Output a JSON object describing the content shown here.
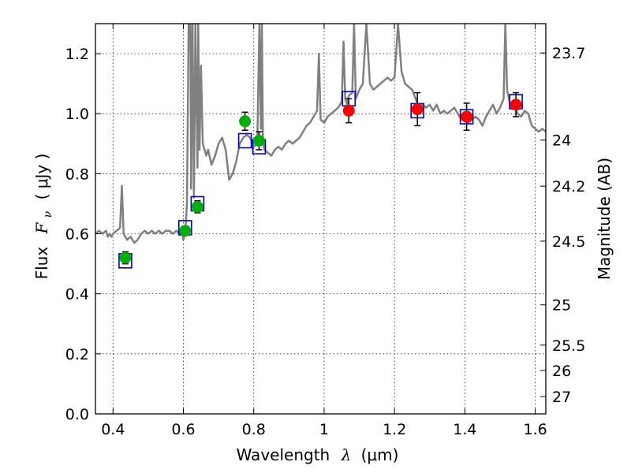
{
  "chart_data": {
    "type": "scatter",
    "xlabel": {
      "text": "Wavelength",
      "symbol": "λ",
      "unit": "(μm)"
    },
    "ylabel": {
      "text": "Flux",
      "symbol": "F",
      "subscript": "ν",
      "unit": "( μJy )"
    },
    "y2label": "Magnitude (AB)",
    "xlim": [
      0.35,
      1.63
    ],
    "ylim": [
      0.0,
      1.3
    ],
    "grid": true,
    "x_ticks": [
      "0.4",
      "0.6",
      "0.8",
      "1",
      "1.2",
      "1.4",
      "1.6"
    ],
    "x_tick_values": [
      0.4,
      0.6,
      0.8,
      1.0,
      1.2,
      1.4,
      1.6
    ],
    "y_ticks": [
      "0.0",
      "0.2",
      "0.4",
      "0.6",
      "0.8",
      "1.0",
      "1.2"
    ],
    "y_tick_values": [
      0.0,
      0.2,
      0.4,
      0.6,
      0.8,
      1.0,
      1.2
    ],
    "y2_ticks": [
      {
        "label": "23.7",
        "value": 23.7
      },
      {
        "label": "24",
        "value": 24.0
      },
      {
        "label": "24.2",
        "value": 24.2
      },
      {
        "label": "24.5",
        "value": 24.5
      },
      {
        "label": "25",
        "value": 25.0
      },
      {
        "label": "25.5",
        "value": 25.5
      },
      {
        "label": "26",
        "value": 26.0
      },
      {
        "label": "27",
        "value": 27.0
      }
    ],
    "series": [
      {
        "marker": "line",
        "color": "#808080",
        "x": [
          0.35,
          0.36,
          0.37,
          0.38,
          0.385,
          0.39,
          0.395,
          0.4,
          0.41,
          0.42,
          0.425,
          0.43,
          0.44,
          0.45,
          0.46,
          0.47,
          0.48,
          0.49,
          0.5,
          0.51,
          0.52,
          0.53,
          0.54,
          0.55,
          0.56,
          0.57,
          0.58,
          0.59,
          0.595,
          0.6,
          0.605,
          0.61,
          0.615,
          0.62,
          0.622,
          0.626,
          0.63,
          0.634,
          0.64,
          0.642,
          0.646,
          0.65,
          0.655,
          0.66,
          0.665,
          0.67,
          0.68,
          0.69,
          0.7,
          0.71,
          0.72,
          0.73,
          0.74,
          0.75,
          0.76,
          0.77,
          0.78,
          0.79,
          0.8,
          0.81,
          0.816,
          0.82,
          0.823,
          0.826,
          0.83,
          0.84,
          0.85,
          0.86,
          0.87,
          0.88,
          0.89,
          0.9,
          0.91,
          0.92,
          0.93,
          0.94,
          0.95,
          0.96,
          0.97,
          0.98,
          0.985,
          0.99,
          1.0,
          1.01,
          1.02,
          1.03,
          1.04,
          1.05,
          1.055,
          1.06,
          1.065,
          1.07,
          1.08,
          1.085,
          1.09,
          1.1,
          1.11,
          1.12,
          1.13,
          1.14,
          1.15,
          1.16,
          1.17,
          1.18,
          1.19,
          1.2,
          1.21,
          1.22,
          1.23,
          1.24,
          1.25,
          1.26,
          1.27,
          1.28,
          1.29,
          1.3,
          1.31,
          1.32,
          1.33,
          1.34,
          1.35,
          1.36,
          1.37,
          1.38,
          1.39,
          1.4,
          1.41,
          1.42,
          1.43,
          1.44,
          1.45,
          1.46,
          1.47,
          1.48,
          1.49,
          1.5,
          1.51,
          1.515,
          1.52,
          1.53,
          1.54,
          1.55,
          1.56,
          1.57,
          1.58,
          1.59,
          1.6,
          1.61,
          1.62,
          1.63
        ],
        "y": [
          0.6,
          0.61,
          0.6,
          0.61,
          0.59,
          0.6,
          0.59,
          0.6,
          0.61,
          0.62,
          0.76,
          0.6,
          0.58,
          0.59,
          0.57,
          0.58,
          0.6,
          0.61,
          0.6,
          0.61,
          0.6,
          0.61,
          0.6,
          0.61,
          0.61,
          0.6,
          0.61,
          0.6,
          0.62,
          0.58,
          0.6,
          0.7,
          1.3,
          1.3,
          0.75,
          1.3,
          0.72,
          1.3,
          0.82,
          1.3,
          0.88,
          1.16,
          0.9,
          0.88,
          0.86,
          0.88,
          0.83,
          0.86,
          0.9,
          0.92,
          0.88,
          0.78,
          0.8,
          0.84,
          0.9,
          0.92,
          0.93,
          0.92,
          0.89,
          0.9,
          1.3,
          0.95,
          1.3,
          0.92,
          0.88,
          0.87,
          0.86,
          0.88,
          0.89,
          0.88,
          0.9,
          0.91,
          0.9,
          0.91,
          0.92,
          0.94,
          0.96,
          0.97,
          0.99,
          1.01,
          1.2,
          0.98,
          0.97,
          0.99,
          1.0,
          1.01,
          1.02,
          1.04,
          1.24,
          1.05,
          1.03,
          1.06,
          1.07,
          1.3,
          1.05,
          1.08,
          1.1,
          1.3,
          1.1,
          1.08,
          1.09,
          1.1,
          1.11,
          1.12,
          1.11,
          1.12,
          1.3,
          1.14,
          1.1,
          1.09,
          1.08,
          1.05,
          1.02,
          1.03,
          1.02,
          1.03,
          1.01,
          1.03,
          1.0,
          1.01,
          1.0,
          1.01,
          1.02,
          1.0,
          0.98,
          1.0,
          0.97,
          0.98,
          0.99,
          0.98,
          0.96,
          0.99,
          1.01,
          1.03,
          1.0,
          1.02,
          1.05,
          1.3,
          1.08,
          1.02,
          1.03,
          1.0,
          0.99,
          1.01,
          1.0,
          0.96,
          0.95,
          0.94,
          0.95,
          0.94
        ]
      },
      {
        "marker": "open-square",
        "color": "#0000cc",
        "x": [
          0.435,
          0.605,
          0.64,
          0.775,
          0.815,
          1.07,
          1.265,
          1.405,
          1.545
        ],
        "y": [
          0.51,
          0.62,
          0.7,
          0.91,
          0.89,
          1.05,
          1.01,
          0.99,
          1.04
        ]
      },
      {
        "marker": "filled-circle",
        "color": "#00b000",
        "x": [
          0.435,
          0.605,
          0.64,
          0.775,
          0.815
        ],
        "y": [
          0.52,
          0.61,
          0.69,
          0.975,
          0.91
        ],
        "err": [
          0.02,
          0.015,
          0.02,
          0.03,
          0.03
        ]
      },
      {
        "marker": "filled-circle",
        "color": "#ff0000",
        "x": [
          1.07,
          1.265,
          1.405,
          1.545
        ],
        "y": [
          1.01,
          1.015,
          0.99,
          1.03
        ],
        "err": [
          0.04,
          0.055,
          0.045,
          0.04
        ]
      }
    ]
  }
}
